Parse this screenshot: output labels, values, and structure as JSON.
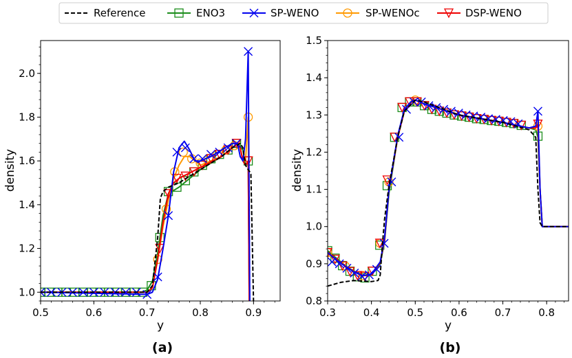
{
  "legend": {
    "entries": [
      {
        "label": "Reference",
        "color": "#000000",
        "dash": true,
        "marker": "none"
      },
      {
        "label": "ENO3",
        "color": "#1a8c1a",
        "dash": false,
        "marker": "square"
      },
      {
        "label": "SP-WENO",
        "color": "#0000ee",
        "dash": false,
        "marker": "x"
      },
      {
        "label": "SP-WENOc",
        "color": "#ff9900",
        "dash": false,
        "marker": "circle"
      },
      {
        "label": "DSP-WENO",
        "color": "#ee0000",
        "dash": false,
        "marker": "triangle-down"
      }
    ]
  },
  "chart_data": [
    {
      "type": "line",
      "panel_label": "(a)",
      "xlabel": "y",
      "ylabel": "density",
      "xlim": [
        0.5,
        0.95
      ],
      "ylim": [
        0.96,
        2.15
      ],
      "xticks": [
        0.5,
        0.6,
        0.7,
        0.8,
        0.9
      ],
      "xtick_labels": [
        "0.5",
        "0.6",
        "0.7",
        "0.8",
        "0.9"
      ],
      "yticks": [
        1.0,
        1.2,
        1.4,
        1.6,
        1.8,
        2.0
      ],
      "ytick_labels": [
        "1.0",
        "1.2",
        "1.4",
        "1.6",
        "1.8",
        "2.0"
      ],
      "series": [
        {
          "name": "Reference",
          "x": [
            0.5,
            0.7,
            0.71,
            0.72,
            0.725,
            0.73,
            0.74,
            0.76,
            0.8,
            0.84,
            0.86,
            0.875,
            0.88,
            0.885,
            0.89,
            0.893,
            0.895,
            0.9
          ],
          "y": [
            1.0,
            1.0,
            1.03,
            1.25,
            1.43,
            1.46,
            1.48,
            1.5,
            1.56,
            1.62,
            1.66,
            1.68,
            1.66,
            1.58,
            1.56,
            1.55,
            1.54,
            0.96
          ]
        },
        {
          "name": "ENO3",
          "x": [
            0.5,
            0.69,
            0.7,
            0.71,
            0.72,
            0.73,
            0.74,
            0.76,
            0.8,
            0.84,
            0.86,
            0.87,
            0.88,
            0.885,
            0.89,
            0.892
          ],
          "y": [
            1.0,
            1.0,
            1.01,
            1.05,
            1.18,
            1.35,
            1.45,
            1.48,
            1.56,
            1.62,
            1.66,
            1.68,
            1.65,
            1.58,
            1.6,
            0.96
          ],
          "mx": [
            0.5,
            0.516,
            0.532,
            0.548,
            0.564,
            0.58,
            0.596,
            0.612,
            0.628,
            0.644,
            0.66,
            0.676,
            0.692,
            0.708,
            0.724,
            0.74,
            0.756,
            0.772,
            0.788,
            0.804,
            0.82,
            0.836,
            0.852,
            0.868,
            0.89
          ],
          "my": [
            1.0,
            1.0,
            1.0,
            1.0,
            1.0,
            1.0,
            1.0,
            1.0,
            1.0,
            1.0,
            1.0,
            1.0,
            1.0,
            1.03,
            1.25,
            1.46,
            1.48,
            1.51,
            1.55,
            1.58,
            1.61,
            1.63,
            1.65,
            1.68,
            1.6
          ]
        },
        {
          "name": "SP-WENO",
          "x": [
            0.5,
            0.7,
            0.71,
            0.72,
            0.73,
            0.74,
            0.75,
            0.76,
            0.77,
            0.78,
            0.79,
            0.8,
            0.82,
            0.84,
            0.86,
            0.87,
            0.875,
            0.88,
            0.885,
            0.89,
            0.893
          ],
          "y": [
            1.0,
            0.99,
            1.0,
            1.06,
            1.2,
            1.35,
            1.55,
            1.66,
            1.69,
            1.65,
            1.6,
            1.6,
            1.62,
            1.65,
            1.68,
            1.68,
            1.62,
            1.6,
            1.7,
            2.1,
            0.96
          ],
          "mx": [
            0.5,
            0.52,
            0.54,
            0.56,
            0.58,
            0.6,
            0.62,
            0.64,
            0.66,
            0.68,
            0.7,
            0.72,
            0.74,
            0.756,
            0.772,
            0.788,
            0.804,
            0.82,
            0.836,
            0.852,
            0.868,
            0.89
          ],
          "my": [
            1.0,
            1.0,
            1.0,
            1.0,
            1.0,
            1.0,
            1.0,
            1.0,
            1.0,
            1.0,
            0.99,
            1.07,
            1.35,
            1.64,
            1.66,
            1.61,
            1.61,
            1.63,
            1.64,
            1.66,
            1.68,
            2.1
          ]
        },
        {
          "name": "SP-WENOc",
          "x": [
            0.5,
            0.7,
            0.71,
            0.72,
            0.73,
            0.74,
            0.75,
            0.76,
            0.77,
            0.78,
            0.79,
            0.8,
            0.84,
            0.86,
            0.87,
            0.875,
            0.88,
            0.885,
            0.89,
            0.892
          ],
          "y": [
            1.0,
            1.0,
            1.02,
            1.15,
            1.3,
            1.42,
            1.52,
            1.58,
            1.62,
            1.62,
            1.6,
            1.58,
            1.62,
            1.66,
            1.68,
            1.66,
            1.6,
            1.6,
            1.8,
            0.96
          ],
          "mx": [
            0.72,
            0.736,
            0.752,
            0.768,
            0.784,
            0.8,
            0.816,
            0.832,
            0.848,
            0.864,
            0.89
          ],
          "my": [
            1.15,
            1.38,
            1.55,
            1.64,
            1.61,
            1.59,
            1.61,
            1.63,
            1.65,
            1.67,
            1.8
          ]
        },
        {
          "name": "DSP-WENO",
          "x": [
            0.5,
            0.7,
            0.71,
            0.72,
            0.73,
            0.74,
            0.75,
            0.76,
            0.8,
            0.84,
            0.86,
            0.87,
            0.875,
            0.88,
            0.885,
            0.89,
            0.892
          ],
          "y": [
            1.0,
            1.0,
            1.02,
            1.15,
            1.32,
            1.45,
            1.5,
            1.52,
            1.57,
            1.62,
            1.66,
            1.68,
            1.66,
            1.6,
            1.58,
            1.6,
            0.96
          ],
          "mx": [
            0.724,
            0.74,
            0.756,
            0.772,
            0.788,
            0.804,
            0.82,
            0.836,
            0.852,
            0.868,
            0.89
          ],
          "my": [
            1.2,
            1.45,
            1.52,
            1.53,
            1.55,
            1.58,
            1.61,
            1.63,
            1.65,
            1.68,
            1.6
          ]
        }
      ]
    },
    {
      "type": "line",
      "panel_label": "(b)",
      "xlabel": "y",
      "ylabel": "density",
      "xlim": [
        0.3,
        0.85
      ],
      "ylim": [
        0.8,
        1.5
      ],
      "xticks": [
        0.3,
        0.4,
        0.5,
        0.6,
        0.7,
        0.8
      ],
      "xtick_labels": [
        "0.3",
        "0.4",
        "0.5",
        "0.6",
        "0.7",
        "0.8"
      ],
      "yticks": [
        0.8,
        0.9,
        1.0,
        1.1,
        1.2,
        1.3,
        1.4,
        1.5
      ],
      "ytick_labels": [
        "0.8",
        "0.9",
        "1.0",
        "1.1",
        "1.2",
        "1.3",
        "1.4",
        "1.5"
      ],
      "series": [
        {
          "name": "Reference",
          "x": [
            0.3,
            0.33,
            0.36,
            0.4,
            0.415,
            0.42,
            0.425,
            0.43,
            0.44,
            0.46,
            0.475,
            0.5,
            0.52,
            0.6,
            0.7,
            0.76,
            0.775,
            0.78,
            0.785,
            0.79,
            0.85
          ],
          "y": [
            0.84,
            0.85,
            0.855,
            0.852,
            0.855,
            0.87,
            0.95,
            1.02,
            1.11,
            1.24,
            1.31,
            1.34,
            1.335,
            1.3,
            1.28,
            1.26,
            1.24,
            1.1,
            1.01,
            1.0,
            1.0
          ]
        },
        {
          "name": "ENO3",
          "x": [
            0.3,
            0.32,
            0.34,
            0.36,
            0.38,
            0.4,
            0.42,
            0.43,
            0.44,
            0.46,
            0.475,
            0.49,
            0.5,
            0.52,
            0.6,
            0.7,
            0.76,
            0.775,
            0.78,
            0.785,
            0.79,
            0.85
          ],
          "y": [
            0.935,
            0.915,
            0.895,
            0.88,
            0.868,
            0.87,
            0.9,
            0.96,
            1.09,
            1.24,
            1.31,
            1.335,
            1.34,
            1.33,
            1.3,
            1.28,
            1.265,
            1.26,
            1.24,
            1.1,
            1.0,
            1.0
          ],
          "mx": [
            0.3,
            0.317,
            0.334,
            0.351,
            0.368,
            0.385,
            0.402,
            0.419,
            0.436,
            0.453,
            0.47,
            0.487,
            0.504,
            0.521,
            0.538,
            0.555,
            0.572,
            0.589,
            0.606,
            0.623,
            0.64,
            0.657,
            0.674,
            0.691,
            0.708,
            0.725,
            0.742,
            0.78
          ],
          "my": [
            0.935,
            0.915,
            0.895,
            0.88,
            0.865,
            0.862,
            0.88,
            0.95,
            1.11,
            1.24,
            1.32,
            1.335,
            1.335,
            1.325,
            1.315,
            1.31,
            1.305,
            1.3,
            1.297,
            1.294,
            1.29,
            1.288,
            1.285,
            1.283,
            1.28,
            1.277,
            1.272,
            1.243
          ]
        },
        {
          "name": "SP-WENO",
          "x": [
            0.3,
            0.32,
            0.34,
            0.36,
            0.38,
            0.4,
            0.42,
            0.43,
            0.44,
            0.46,
            0.475,
            0.49,
            0.5,
            0.52,
            0.6,
            0.7,
            0.76,
            0.775,
            0.78,
            0.785,
            0.79,
            0.85
          ],
          "y": [
            0.93,
            0.91,
            0.893,
            0.878,
            0.868,
            0.872,
            0.905,
            0.97,
            1.1,
            1.245,
            1.315,
            1.335,
            1.34,
            1.33,
            1.3,
            1.28,
            1.265,
            1.27,
            1.31,
            1.1,
            1.0,
            1.0
          ],
          "mx": [
            0.31,
            0.327,
            0.344,
            0.361,
            0.378,
            0.395,
            0.412,
            0.429,
            0.446,
            0.463,
            0.48,
            0.497,
            0.514,
            0.531,
            0.548,
            0.565,
            0.582,
            0.599,
            0.616,
            0.633,
            0.65,
            0.667,
            0.684,
            0.701,
            0.718,
            0.735,
            0.78
          ],
          "my": [
            0.905,
            0.9,
            0.888,
            0.875,
            0.866,
            0.87,
            0.885,
            0.955,
            1.12,
            1.24,
            1.315,
            1.335,
            1.335,
            1.325,
            1.32,
            1.315,
            1.31,
            1.305,
            1.3,
            1.297,
            1.294,
            1.29,
            1.288,
            1.285,
            1.282,
            1.276,
            1.31
          ]
        },
        {
          "name": "SP-WENOc",
          "x": [
            0.3,
            0.32,
            0.34,
            0.36,
            0.38,
            0.4,
            0.42,
            0.43,
            0.44,
            0.46,
            0.475,
            0.49,
            0.5,
            0.52,
            0.6,
            0.7,
            0.76,
            0.775,
            0.78,
            0.785,
            0.79,
            0.85
          ],
          "y": [
            0.93,
            0.912,
            0.894,
            0.879,
            0.868,
            0.871,
            0.903,
            0.965,
            1.1,
            1.24,
            1.31,
            1.335,
            1.34,
            1.33,
            1.3,
            1.28,
            1.265,
            1.265,
            1.28,
            1.1,
            1.0,
            1.0
          ],
          "mx": [
            0.3,
            0.34,
            0.38,
            0.42,
            0.44,
            0.5,
            0.78
          ],
          "my": [
            0.93,
            0.894,
            0.868,
            0.955,
            1.12,
            1.34,
            1.27
          ]
        },
        {
          "name": "DSP-WENO",
          "x": [
            0.3,
            0.32,
            0.34,
            0.36,
            0.38,
            0.4,
            0.42,
            0.43,
            0.44,
            0.46,
            0.475,
            0.49,
            0.5,
            0.52,
            0.6,
            0.7,
            0.76,
            0.775,
            0.78,
            0.785,
            0.79,
            0.85
          ],
          "y": [
            0.93,
            0.912,
            0.894,
            0.879,
            0.868,
            0.871,
            0.903,
            0.965,
            1.1,
            1.24,
            1.31,
            1.335,
            1.34,
            1.33,
            1.3,
            1.28,
            1.265,
            1.265,
            1.275,
            1.1,
            1.0,
            1.0
          ],
          "mx": [
            0.3,
            0.317,
            0.334,
            0.351,
            0.368,
            0.385,
            0.402,
            0.419,
            0.436,
            0.453,
            0.47,
            0.487,
            0.504,
            0.521,
            0.538,
            0.555,
            0.572,
            0.589,
            0.606,
            0.623,
            0.64,
            0.657,
            0.674,
            0.691,
            0.708,
            0.725,
            0.742,
            0.78
          ],
          "my": [
            0.93,
            0.912,
            0.894,
            0.879,
            0.868,
            0.866,
            0.88,
            0.955,
            1.125,
            1.24,
            1.32,
            1.335,
            1.335,
            1.325,
            1.315,
            1.31,
            1.305,
            1.3,
            1.297,
            1.294,
            1.29,
            1.288,
            1.285,
            1.283,
            1.28,
            1.277,
            1.272,
            1.275
          ]
        }
      ]
    }
  ]
}
